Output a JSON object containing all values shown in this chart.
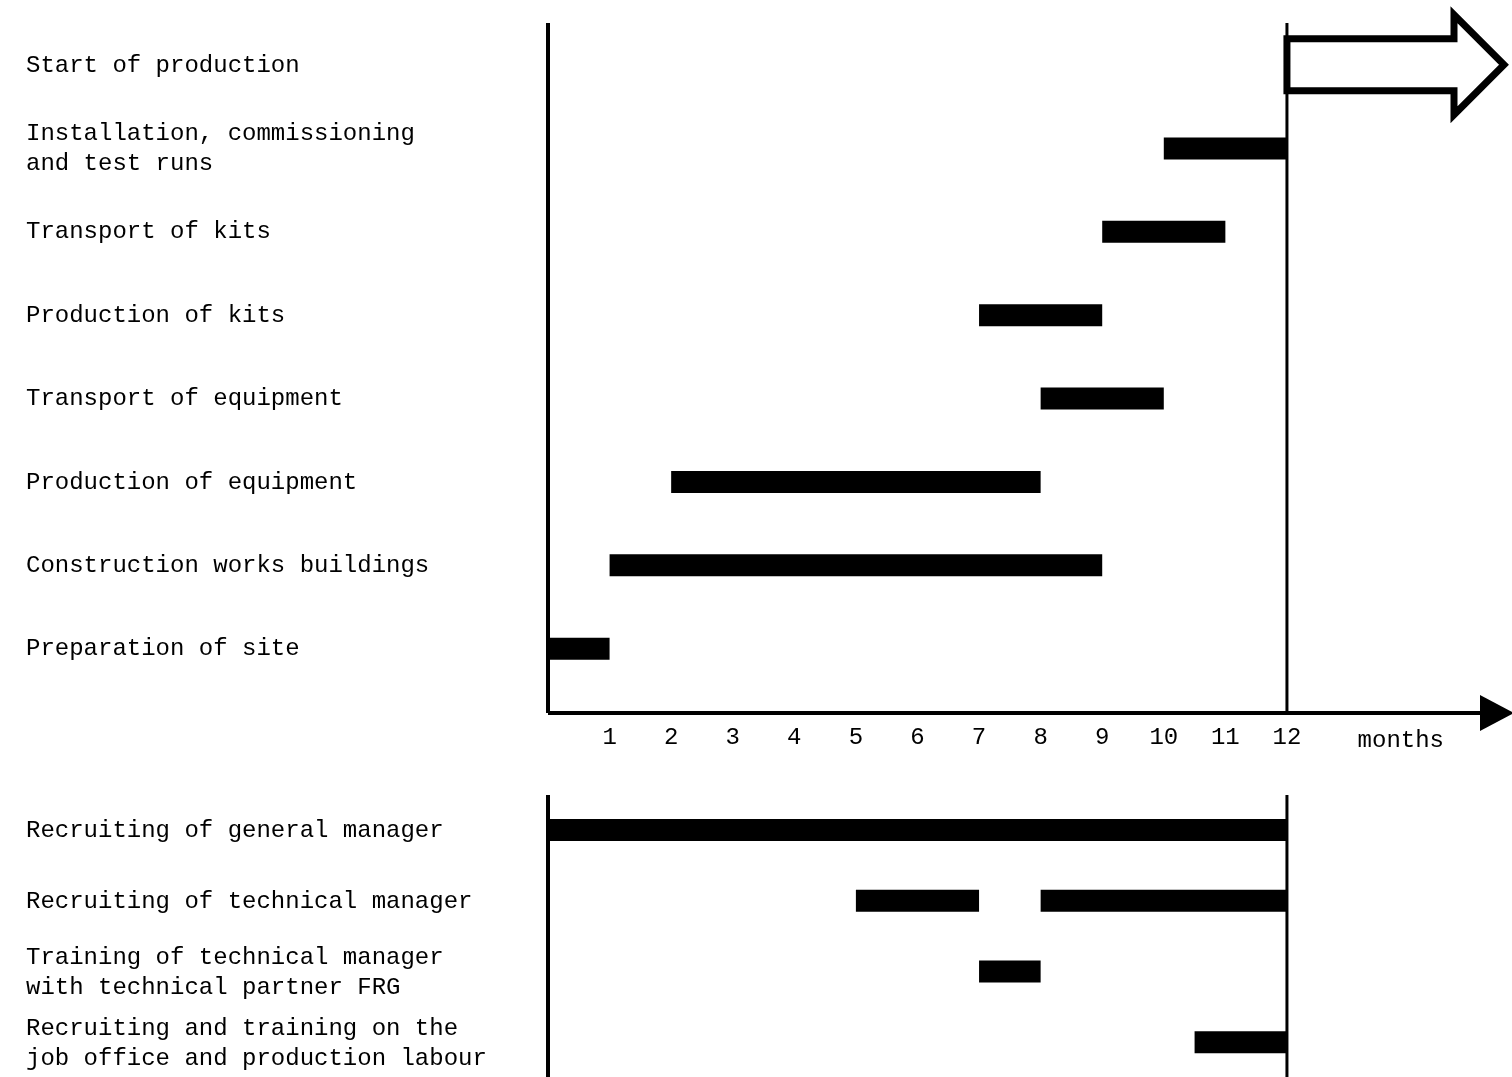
{
  "chart_data": [
    {
      "type": "bar",
      "orientation": "horizontal",
      "categories": [
        "Start of production",
        "Installation, commissioning\nand test runs",
        "Transport of kits",
        "Production of kits",
        "Transport of equipment",
        "Production of equipment",
        "Construction works buildings",
        "Preparation of site"
      ],
      "series": [
        {
          "color": "#000000",
          "base": [
            null,
            10,
            9,
            7,
            8,
            2,
            1,
            0
          ],
          "values": [
            null,
            2,
            2,
            2,
            2,
            6,
            8,
            1
          ]
        }
      ],
      "xlabel": "months",
      "xlim": [
        0,
        15.2
      ],
      "xticks": [
        1,
        2,
        3,
        4,
        5,
        6,
        7,
        8,
        9,
        10,
        11,
        12
      ],
      "ref_lines": [
        {
          "axis": "x",
          "value": 12
        }
      ],
      "grid": false,
      "legend": false
    },
    {
      "type": "bar",
      "orientation": "horizontal",
      "categories": [
        "Recruiting of general manager",
        "Recruiting of technical manager",
        "Training of technical manager\nwith technical partner FRG",
        "Recruiting and training on the\njob office and production labour"
      ],
      "series": [
        {
          "color": "#000000",
          "base": [
            0,
            5,
            7,
            10.5
          ],
          "values": [
            12,
            2,
            1,
            1.5
          ]
        },
        {
          "color": "#000000",
          "base": [
            null,
            8,
            null,
            null
          ],
          "values": [
            null,
            4,
            null,
            null
          ]
        }
      ],
      "xlim": [
        0,
        12
      ],
      "xticks": [
        1,
        2,
        3,
        4,
        5,
        6,
        7,
        8,
        9,
        10,
        11,
        12
      ],
      "tick_labels": "y",
      "ref_lines": [
        {
          "axis": "x",
          "value": 12
        }
      ],
      "grid": false,
      "legend": false
    }
  ]
}
